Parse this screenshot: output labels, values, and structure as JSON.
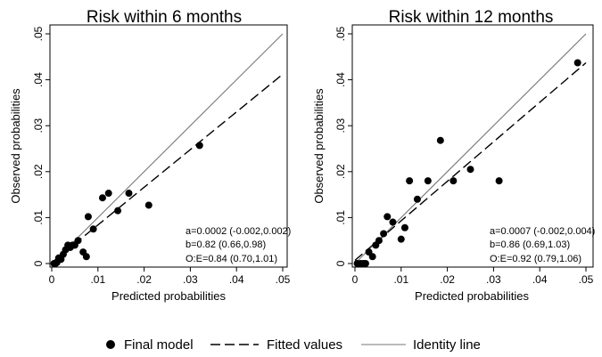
{
  "chart_data": [
    {
      "type": "scatter",
      "title": "Risk within 6 months",
      "xlabel": "Predicted probabilities",
      "ylabel": "Observed probabilities",
      "xlim": [
        0,
        0.05
      ],
      "ylim": [
        0,
        0.05
      ],
      "xticks": [
        ".05",
        ".04",
        ".03",
        ".02",
        ".01",
        "0"
      ],
      "yticks": [
        ".05",
        ".04",
        ".03",
        ".02",
        ".01",
        "0"
      ],
      "series": [
        {
          "name": "Final model",
          "x": [
            0.0005,
            0.0008,
            0.0011,
            0.0015,
            0.002,
            0.0025,
            0.003,
            0.0035,
            0.004,
            0.0045,
            0.005,
            0.0057,
            0.0068,
            0.0075,
            0.0079,
            0.009,
            0.011,
            0.0123,
            0.0143,
            0.0167,
            0.021,
            0.032
          ],
          "y": [
            0.0,
            0.0,
            0.0002,
            0.0012,
            0.0009,
            0.002,
            0.003,
            0.004,
            0.0035,
            0.004,
            0.004,
            0.005,
            0.0025,
            0.0015,
            0.0102,
            0.0075,
            0.0143,
            0.0153,
            0.0115,
            0.0153,
            0.0127,
            0.0257
          ]
        },
        {
          "name": "Fitted values",
          "x": [
            0,
            0.05
          ],
          "y": [
            0.0002,
            0.0412
          ]
        },
        {
          "name": "Identity line",
          "x": [
            0,
            0.05
          ],
          "y": [
            0,
            0.05
          ]
        }
      ],
      "annotations": [
        "a=0.0002 (-0.002,0.002)",
        "b=0.82 (0.66,0.98)",
        "O:E=0.84 (0.70,1.01)"
      ]
    },
    {
      "type": "scatter",
      "title": "Risk within 12 months",
      "xlabel": "Predicted probabilities",
      "ylabel": "Observed probabilities",
      "xlim": [
        0,
        0.05
      ],
      "ylim": [
        0,
        0.05
      ],
      "xticks": [
        ".05",
        ".04",
        ".03",
        ".02",
        ".01",
        "0"
      ],
      "yticks": [
        ".05",
        ".04",
        ".03",
        ".02",
        ".01",
        "0"
      ],
      "series": [
        {
          "name": "Final model",
          "x": [
            0.0005,
            0.0012,
            0.0018,
            0.0023,
            0.003,
            0.0038,
            0.0045,
            0.0052,
            0.0062,
            0.007,
            0.0082,
            0.01,
            0.0108,
            0.0118,
            0.0135,
            0.0158,
            0.0185,
            0.0213,
            0.025,
            0.0312,
            0.0482
          ],
          "y": [
            0.0,
            0.0,
            0.0,
            0.0,
            0.0025,
            0.0015,
            0.004,
            0.005,
            0.0065,
            0.0102,
            0.009,
            0.0053,
            0.0078,
            0.018,
            0.014,
            0.018,
            0.0268,
            0.018,
            0.0205,
            0.018,
            0.0437
          ]
        },
        {
          "name": "Fitted values",
          "x": [
            0,
            0.05
          ],
          "y": [
            0.0007,
            0.0437
          ]
        },
        {
          "name": "Identity line",
          "x": [
            0,
            0.05
          ],
          "y": [
            0,
            0.05
          ]
        }
      ],
      "annotations": [
        "a=0.0007 (-0.002,0.004)",
        "b=0.86 (0.69,1.03)",
        "O:E=0.92 (0.79,1.06)"
      ]
    }
  ],
  "legend": {
    "placement": "bottom",
    "items": [
      "Final model",
      "Fitted values",
      "Identity line"
    ]
  }
}
